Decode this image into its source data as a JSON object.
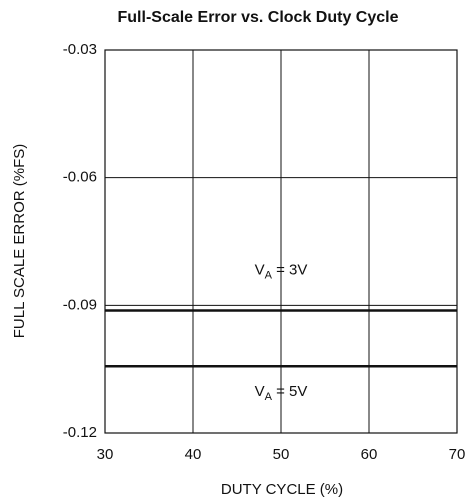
{
  "chart_data": {
    "type": "line",
    "title": "Full-Scale Error vs. Clock Duty Cycle",
    "x_label": "DUTY CYCLE (%)",
    "y_label": "FULL SCALE ERROR (%FS)",
    "x": [
      30,
      70
    ],
    "series": [
      {
        "name": "VA = 3V",
        "color": "#111111",
        "values": [
          -0.0912,
          -0.0912
        ]
      },
      {
        "name": "VA = 5V",
        "color": "#111111",
        "values": [
          -0.1043,
          -0.1043
        ]
      }
    ],
    "xlim": [
      30,
      70
    ],
    "xticks": [
      30,
      40,
      50,
      60,
      70
    ],
    "ylim": [
      -0.12,
      -0.03
    ],
    "yticks": [
      -0.12,
      -0.09,
      -0.06,
      -0.03
    ],
    "grid": true
  }
}
